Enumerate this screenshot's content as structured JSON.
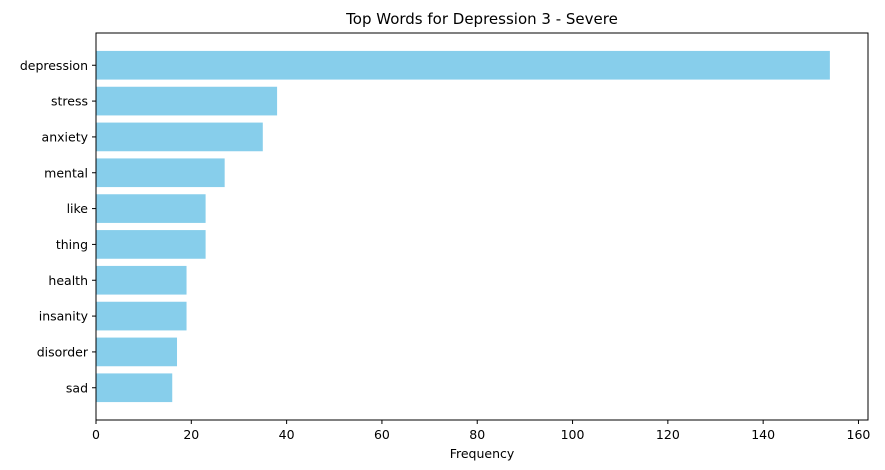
{
  "chart_data": {
    "type": "bar",
    "orientation": "horizontal",
    "title": "Top Words for Depression 3 - Severe",
    "xlabel": "Frequency",
    "ylabel": "",
    "categories": [
      "depression",
      "stress",
      "anxiety",
      "mental",
      "like",
      "thing",
      "health",
      "insanity",
      "disorder",
      "sad"
    ],
    "values": [
      154,
      38,
      35,
      27,
      23,
      23,
      19,
      19,
      17,
      16
    ],
    "xlim": [
      0,
      162
    ],
    "xticks": [
      0,
      20,
      40,
      60,
      80,
      100,
      120,
      140,
      160
    ],
    "bar_color": "#87ceeb",
    "grid": false,
    "legend": "none"
  }
}
